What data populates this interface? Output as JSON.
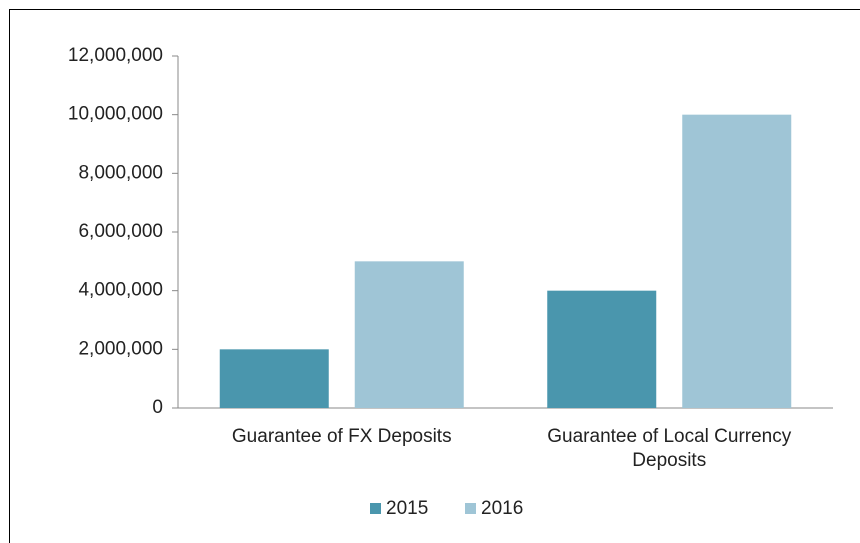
{
  "chart_data": {
    "type": "bar",
    "categories": [
      "Guarantee of FX Deposits",
      "Guarantee of Local Currency Deposits"
    ],
    "series": [
      {
        "name": "2015",
        "color": "#4a96ad",
        "values": [
          2000000,
          4000000
        ]
      },
      {
        "name": "2016",
        "color": "#9fc5d6",
        "values": [
          5000000,
          10000000
        ]
      }
    ],
    "ylim": [
      0,
      12000000
    ],
    "yticks": [
      0,
      {
        "value": 2000000,
        "label": "2,000,000"
      },
      {
        "value": 4000000,
        "label": "4,000,000"
      },
      {
        "value": 6000000,
        "label": "6,000,000"
      },
      {
        "value": 8000000,
        "label": "8,000,000"
      },
      {
        "value": 10000000,
        "label": "10,000,000"
      },
      {
        "value": 12000000,
        "label": "12,000,000"
      }
    ],
    "grid": false,
    "legend": "bottom"
  }
}
